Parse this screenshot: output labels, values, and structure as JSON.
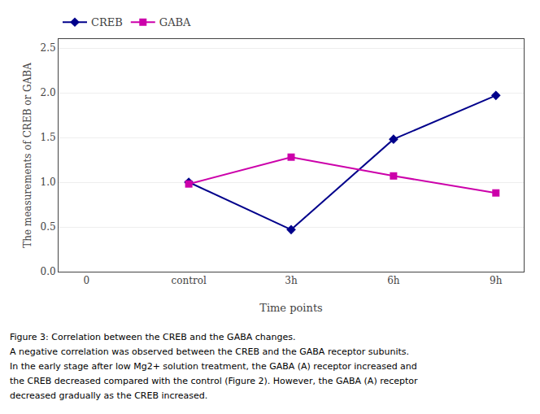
{
  "chart_data": {
    "type": "line",
    "categories": [
      "0",
      "control",
      "3h",
      "6h",
      "9h"
    ],
    "series": [
      {
        "name": "CREB",
        "color": "#00008B",
        "marker": "diamond",
        "values": [
          null,
          1.0,
          0.47,
          1.48,
          1.97
        ]
      },
      {
        "name": "GABA",
        "color": "#CC00AA",
        "marker": "square",
        "values": [
          null,
          0.98,
          1.28,
          1.07,
          0.88
        ]
      }
    ],
    "xlabel": "Time points",
    "ylabel": "The measurements of CREB or GABA",
    "ylim": [
      0.0,
      2.6
    ],
    "yticks": [
      {
        "value": 0,
        "label": "0.0"
      },
      0.5,
      {
        "value": 1,
        "label": "1.0"
      },
      1.5,
      {
        "value": 2,
        "label": "2.0"
      },
      2.5
    ],
    "grid": true,
    "legend": "top left",
    "annotations": [
      "Figure 3: Correlation between the CREB and the GABA changes.",
      "A negative correlation was observed between the CREB and the GABA receptor subunits.",
      "In the early stage after low Mg2+ solution treatment, the GABA (A) receptor increased and",
      "the CREB decreased compared with the control (Figure 2). However, the GABA (A) receptor",
      "decreased gradually as the CREB increased."
    ]
  }
}
